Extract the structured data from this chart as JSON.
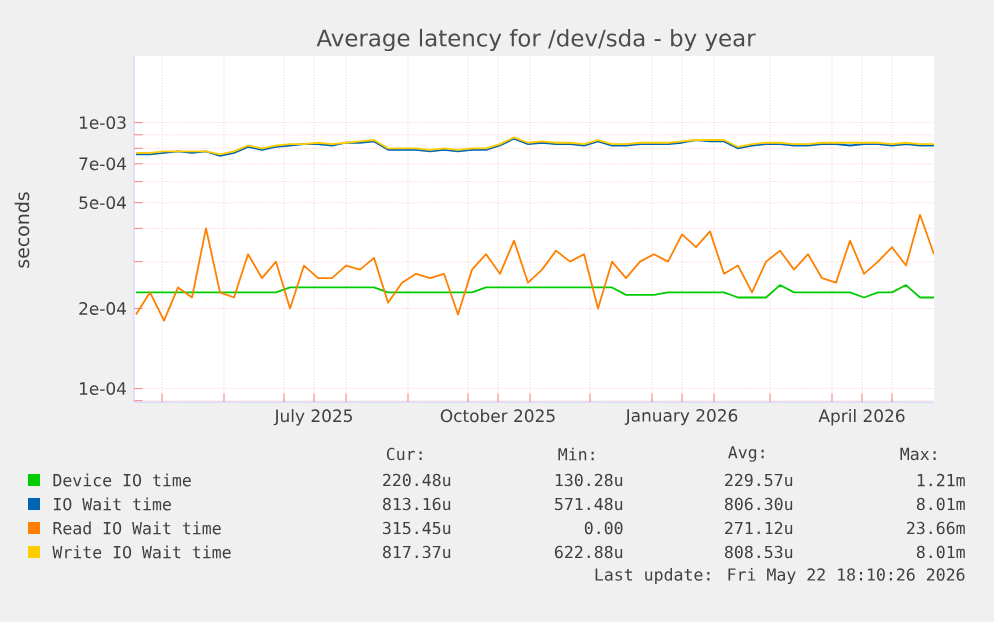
{
  "chart_data": {
    "type": "line",
    "title": "Average latency for /dev/sda - by year",
    "ylabel": "seconds",
    "log": "y",
    "grid": true,
    "legend": "bottom",
    "marker": "none",
    "xlim": [
      "2025-04-17",
      "2026-05-22"
    ],
    "ylim": [
      8.9e-05,
      0.00178
    ],
    "xticks": [
      {
        "value": "2025-05-01",
        "label": null
      },
      {
        "value": "2025-06-01",
        "label": null
      },
      {
        "value": "2025-07-01",
        "label": null
      },
      {
        "value": "2025-07-16",
        "label": "July 2025"
      },
      {
        "value": "2025-08-01",
        "label": null
      },
      {
        "value": "2025-09-01",
        "label": null
      },
      {
        "value": "2025-10-01",
        "label": null
      },
      {
        "value": "2025-10-16",
        "label": "October 2025"
      },
      {
        "value": "2025-11-01",
        "label": null
      },
      {
        "value": "2025-12-01",
        "label": null
      },
      {
        "value": "2026-01-01",
        "label": null
      },
      {
        "value": "2026-01-16",
        "label": "January 2026"
      },
      {
        "value": "2026-02-01",
        "label": null
      },
      {
        "value": "2026-03-01",
        "label": null
      },
      {
        "value": "2026-04-01",
        "label": null
      },
      {
        "value": "2026-04-16",
        "label": "April 2026"
      },
      {
        "value": "2026-05-01",
        "label": null
      }
    ],
    "yticks": [
      {
        "value": 9e-05,
        "label": null
      },
      {
        "value": 0.0001,
        "label": "1e-04"
      },
      {
        "value": 0.0002,
        "label": "2e-04"
      },
      {
        "value": 0.0003,
        "label": null
      },
      {
        "value": 0.0004,
        "label": null
      },
      {
        "value": 0.0005,
        "label": "5e-04"
      },
      {
        "value": 0.0006,
        "label": null
      },
      {
        "value": 0.0007,
        "label": "7e-04"
      },
      {
        "value": 0.0008,
        "label": null
      },
      {
        "value": 0.0009,
        "label": null
      },
      {
        "value": 0.001,
        "label": "1e-03"
      }
    ],
    "x": [
      "2025-04-18",
      "2025-04-25",
      "2025-05-02",
      "2025-05-09",
      "2025-05-16",
      "2025-05-23",
      "2025-05-30",
      "2025-06-06",
      "2025-06-13",
      "2025-06-20",
      "2025-06-27",
      "2025-07-04",
      "2025-07-11",
      "2025-07-18",
      "2025-07-25",
      "2025-08-01",
      "2025-08-08",
      "2025-08-15",
      "2025-08-22",
      "2025-08-29",
      "2025-09-05",
      "2025-09-12",
      "2025-09-19",
      "2025-09-26",
      "2025-10-03",
      "2025-10-10",
      "2025-10-17",
      "2025-10-24",
      "2025-10-31",
      "2025-11-07",
      "2025-11-14",
      "2025-11-21",
      "2025-11-28",
      "2025-12-05",
      "2025-12-12",
      "2025-12-19",
      "2025-12-26",
      "2026-01-02",
      "2026-01-09",
      "2026-01-16",
      "2026-01-23",
      "2026-01-30",
      "2026-02-06",
      "2026-02-13",
      "2026-02-20",
      "2026-02-27",
      "2026-03-06",
      "2026-03-13",
      "2026-03-20",
      "2026-03-27",
      "2026-04-03",
      "2026-04-10",
      "2026-04-17",
      "2026-04-24",
      "2026-05-01",
      "2026-05-08",
      "2026-05-15",
      "2026-05-22"
    ],
    "series": [
      {
        "name": "Device IO time",
        "color": "#00cc00",
        "values": [
          0.00023,
          0.00023,
          0.00023,
          0.00023,
          0.00023,
          0.00023,
          0.00023,
          0.00023,
          0.00023,
          0.00023,
          0.00023,
          0.00024,
          0.00024,
          0.00024,
          0.00024,
          0.00024,
          0.00024,
          0.00024,
          0.00023,
          0.00023,
          0.00023,
          0.00023,
          0.00023,
          0.00023,
          0.00023,
          0.00024,
          0.00024,
          0.00024,
          0.00024,
          0.00024,
          0.00024,
          0.00024,
          0.00024,
          0.00024,
          0.00024,
          0.000225,
          0.000225,
          0.000225,
          0.00023,
          0.00023,
          0.00023,
          0.00023,
          0.00023,
          0.00022,
          0.00022,
          0.00022,
          0.000245,
          0.00023,
          0.00023,
          0.00023,
          0.00023,
          0.00023,
          0.00022,
          0.00023,
          0.00023,
          0.000245,
          0.00022,
          0.00022
        ]
      },
      {
        "name": "IO Wait time",
        "color": "#0066b3",
        "values": [
          0.00076,
          0.00076,
          0.00077,
          0.00078,
          0.00077,
          0.00078,
          0.00075,
          0.00077,
          0.00081,
          0.00079,
          0.00081,
          0.00082,
          0.00083,
          0.00083,
          0.00082,
          0.00084,
          0.00084,
          0.00085,
          0.00079,
          0.00079,
          0.00079,
          0.00078,
          0.00079,
          0.00078,
          0.00079,
          0.00079,
          0.00082,
          0.00087,
          0.00083,
          0.00084,
          0.00083,
          0.00083,
          0.00082,
          0.00085,
          0.00082,
          0.00082,
          0.00083,
          0.00083,
          0.00083,
          0.00084,
          0.00086,
          0.00085,
          0.00085,
          0.0008,
          0.00082,
          0.00083,
          0.00083,
          0.00082,
          0.00082,
          0.00083,
          0.00083,
          0.00082,
          0.00083,
          0.00083,
          0.00082,
          0.00083,
          0.00082,
          0.00082
        ]
      },
      {
        "name": "Read IO Wait time",
        "color": "#ff8000",
        "values": [
          0.00019,
          0.00023,
          0.00018,
          0.00024,
          0.00022,
          0.0004,
          0.00023,
          0.00022,
          0.00032,
          0.00026,
          0.0003,
          0.0002,
          0.00029,
          0.00026,
          0.00026,
          0.00029,
          0.00028,
          0.00031,
          0.00021,
          0.00025,
          0.00027,
          0.00026,
          0.00027,
          0.00019,
          0.00028,
          0.00032,
          0.00027,
          0.00036,
          0.00025,
          0.00028,
          0.00033,
          0.0003,
          0.00032,
          0.0002,
          0.0003,
          0.00026,
          0.0003,
          0.00032,
          0.0003,
          0.00038,
          0.00034,
          0.00039,
          0.00027,
          0.00029,
          0.00023,
          0.0003,
          0.00033,
          0.00028,
          0.00032,
          0.00026,
          0.00025,
          0.00036,
          0.00027,
          0.0003,
          0.00034,
          0.00029,
          0.00045,
          0.00032
        ]
      },
      {
        "name": "Write IO Wait time",
        "color": "#ffcc00",
        "values": [
          0.00077,
          0.00077,
          0.00078,
          0.00078,
          0.00078,
          0.00078,
          0.00076,
          0.00078,
          0.00082,
          0.0008,
          0.00082,
          0.00083,
          0.00083,
          0.00084,
          0.00083,
          0.00084,
          0.00085,
          0.00086,
          0.0008,
          0.0008,
          0.0008,
          0.00079,
          0.0008,
          0.00079,
          0.0008,
          0.0008,
          0.00083,
          0.00088,
          0.00084,
          0.00085,
          0.00084,
          0.00084,
          0.00083,
          0.00086,
          0.00083,
          0.00083,
          0.00084,
          0.00084,
          0.00084,
          0.00085,
          0.00086,
          0.00086,
          0.00086,
          0.00081,
          0.00083,
          0.00084,
          0.00084,
          0.00083,
          0.00083,
          0.00084,
          0.00084,
          0.00084,
          0.00084,
          0.00084,
          0.00083,
          0.00084,
          0.00083,
          0.00083
        ]
      }
    ],
    "annotations": [
      "Cur:",
      "Min:",
      "Avg:",
      "Max:",
      "220.48u",
      "130.28u",
      "229.57u",
      "1.21m",
      "813.16u",
      "571.48u",
      "806.30u",
      "8.01m",
      "315.45u",
      "0.00",
      "271.12u",
      "23.66m",
      "817.37u",
      "622.88u",
      "808.53u",
      "8.01m",
      "Last update: Fri May 22 18:10:26 2026"
    ]
  }
}
